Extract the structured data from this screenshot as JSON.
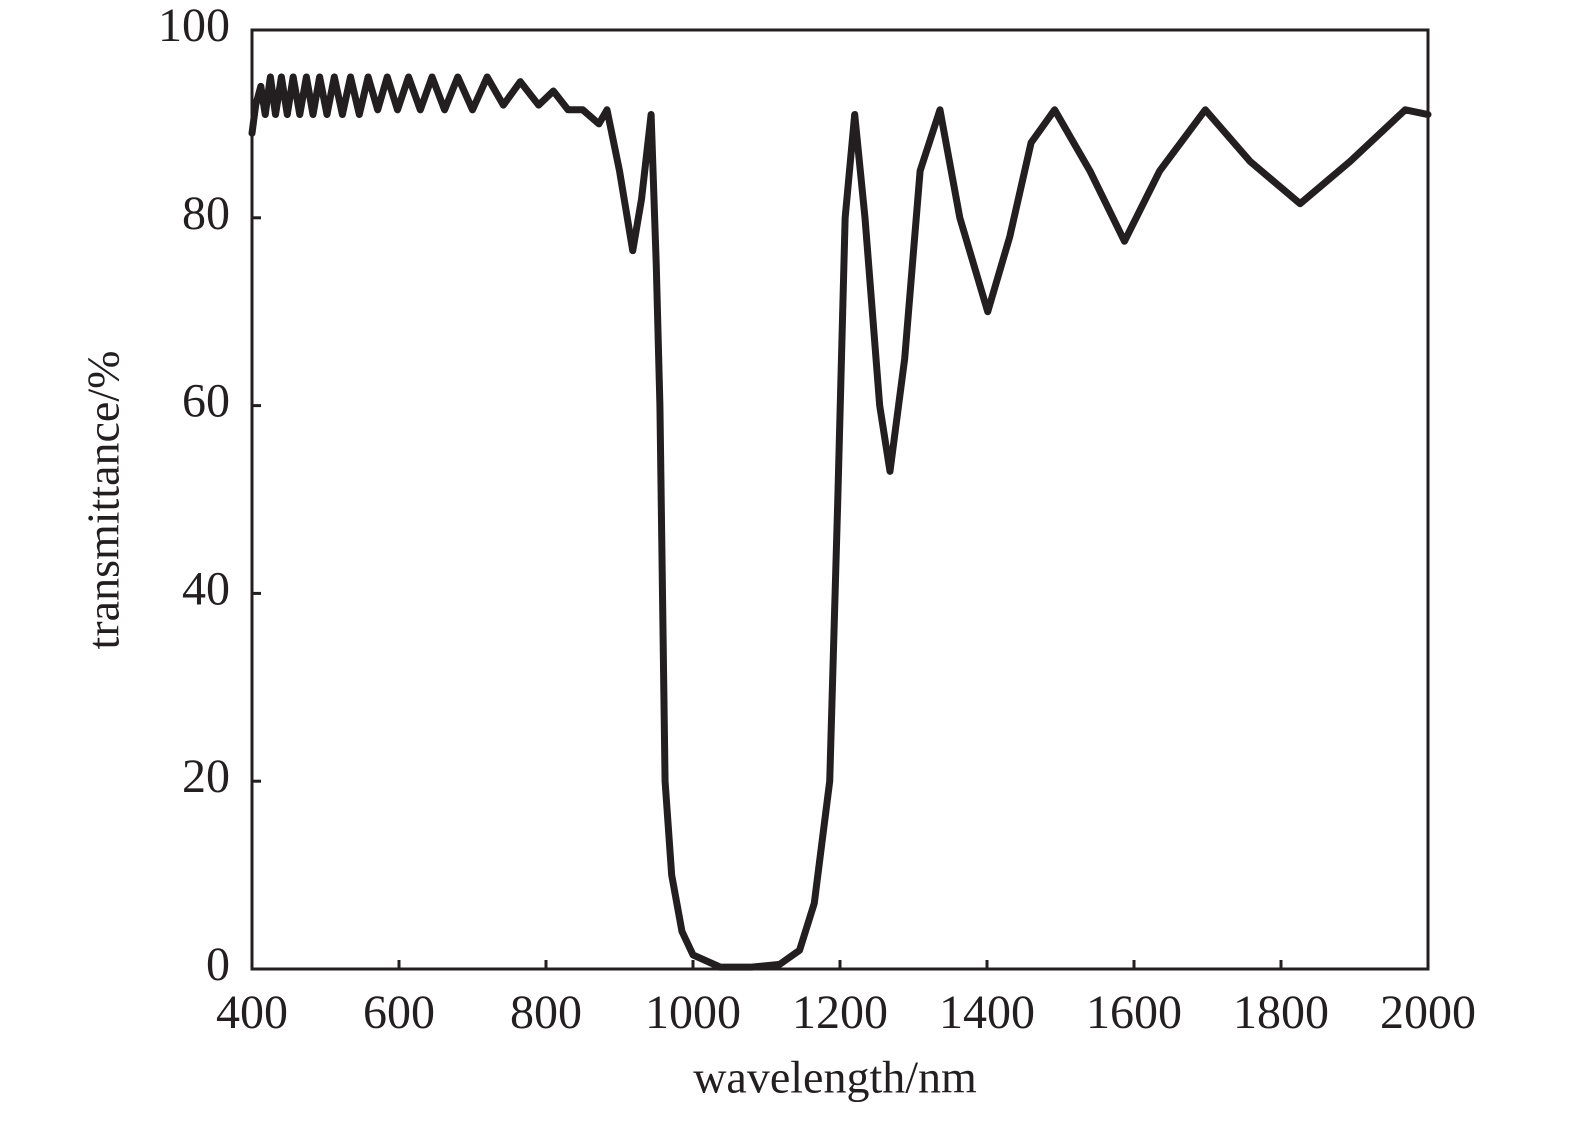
{
  "chart_data": {
    "type": "line",
    "xlabel": "wavelength/nm",
    "ylabel": "transmittance/%",
    "xlim": [
      400,
      2000
    ],
    "xticks": [
      400,
      600,
      800,
      1000,
      1200,
      1400,
      1600,
      1800,
      2000
    ],
    "ylim": [
      0,
      100
    ],
    "yticks": [
      0,
      20,
      40,
      60,
      80,
      100
    ],
    "color": "#231f20",
    "x": [
      400,
      405,
      412,
      418,
      425,
      432,
      440,
      448,
      456,
      465,
      474,
      483,
      492,
      502,
      512,
      523,
      534,
      546,
      558,
      571,
      584,
      598,
      613,
      629,
      645,
      662,
      680,
      700,
      720,
      742,
      765,
      790,
      810,
      830,
      850,
      872,
      883,
      900,
      918,
      930,
      943,
      950,
      955,
      962,
      971,
      985,
      1000,
      1037,
      1080,
      1118,
      1145,
      1165,
      1186,
      1197,
      1207,
      1220,
      1234,
      1254,
      1268,
      1288,
      1309,
      1336,
      1363,
      1401,
      1431,
      1460,
      1492,
      1540,
      1587,
      1635,
      1697,
      1758,
      1826,
      1894,
      1969,
      2000
    ],
    "values": [
      89,
      92,
      94,
      91,
      95,
      91,
      95,
      91,
      95,
      91,
      95,
      91,
      95,
      91,
      95,
      91,
      95,
      91,
      95,
      91.5,
      95,
      91.5,
      95,
      91.5,
      95,
      91.5,
      95,
      91.5,
      95,
      92,
      94.5,
      92,
      93.5,
      91.5,
      91.5,
      90,
      91.5,
      85,
      76.5,
      82,
      91,
      75,
      60,
      20,
      10,
      4,
      1.5,
      0.2,
      0.2,
      0.5,
      2,
      7,
      20,
      50,
      80,
      91,
      80,
      60,
      53,
      65,
      85,
      91.5,
      80,
      70,
      78,
      88,
      91.5,
      85,
      77.5,
      85,
      91.5,
      86,
      81.5,
      86,
      91.5,
      91
    ]
  }
}
